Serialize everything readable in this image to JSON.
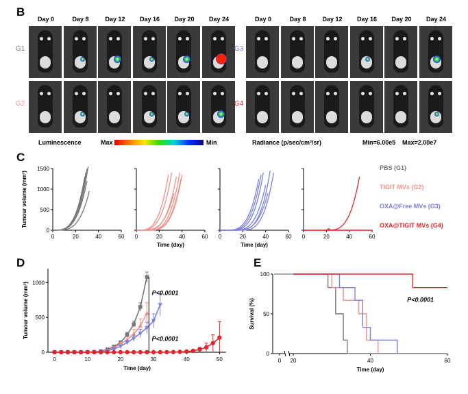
{
  "panelB": {
    "letter": "B",
    "days": [
      "Day 0",
      "Day 8",
      "Day 12",
      "Day 16",
      "Day 20",
      "Day 24"
    ],
    "groups_left": [
      "G1",
      "G2"
    ],
    "groups_right": [
      "G3",
      "G4"
    ],
    "luminescence_label": "Luminescence",
    "max_label": "Max",
    "min_label": "Min",
    "radiance_label": "Radiance (p/sec/cm²/sr)",
    "min_value": "Min=6.00e5",
    "max_value": "Max=2.00e7",
    "colors": {
      "G1": "#777777",
      "G2": "#f0908a",
      "G3": "#7b7fe0",
      "G4": "#e0262c"
    }
  },
  "panelC": {
    "letter": "C",
    "ylabel": "Tumour volume (mm³)",
    "xlabel": "Time (day)"
  },
  "panelD": {
    "letter": "D",
    "ylabel": "Tumour volume (mm³)",
    "xlabel": "Time (day)",
    "p1": "P<0.0001",
    "p2": "P<0.0001"
  },
  "panelE": {
    "letter": "E",
    "ylabel": "Survival (%)",
    "xlabel": "Time (day)",
    "p": "P<0.0001"
  },
  "chart_data": [
    {
      "type": "line",
      "panel": "C",
      "xlabel": "Time (day)",
      "ylabel": "Tumour volume (mm³)",
      "xlim": [
        0,
        60
      ],
      "ylim": [
        0,
        1500
      ],
      "xticks": [
        0,
        20,
        40,
        60
      ],
      "yticks": [
        0,
        500,
        1000,
        1500
      ],
      "legend": [
        "PBS (G1)",
        "TIGIT MVs (G2)",
        "OXA@Free MVs (G3)",
        "OXA@TIGIT MVs (G4)"
      ],
      "subplots": [
        {
          "name": "PBS (G1)",
          "color": "#777777",
          "curves": [
            {
              "end": 31,
              "peak": 1550
            },
            {
              "end": 30,
              "peak": 1500
            },
            {
              "end": 29,
              "peak": 1400
            },
            {
              "end": 28,
              "peak": 1300
            },
            {
              "end": 32,
              "peak": 950
            },
            {
              "end": 27,
              "peak": 1100
            },
            {
              "end": 30,
              "peak": 1200
            }
          ]
        },
        {
          "name": "TIGIT MVs (G2)",
          "color": "#f0908a",
          "curves": [
            {
              "end": 28,
              "peak": 1350
            },
            {
              "end": 31,
              "peak": 1400
            },
            {
              "end": 35,
              "peak": 1300
            },
            {
              "end": 38,
              "peak": 1400
            },
            {
              "end": 40,
              "peak": 1350
            },
            {
              "end": 39,
              "peak": 1250
            },
            {
              "end": 33,
              "peak": 900
            }
          ]
        },
        {
          "name": "OXA@Free MVs (G3)",
          "color": "#7b7fe0",
          "curves": [
            {
              "end": 34,
              "peak": 1250
            },
            {
              "end": 36,
              "peak": 1350
            },
            {
              "end": 38,
              "peak": 1400
            },
            {
              "end": 40,
              "peak": 1100
            },
            {
              "end": 44,
              "peak": 1450
            },
            {
              "end": 47,
              "peak": 1400
            },
            {
              "end": 42,
              "peak": 900
            }
          ]
        },
        {
          "name": "OXA@TIGIT MVs (G4)",
          "color": "#e0262c",
          "curves": [
            {
              "end": 49,
              "peak": 1300
            },
            {
              "end": 60,
              "peak": 0
            },
            {
              "end": 60,
              "peak": 0
            },
            {
              "end": 60,
              "peak": 0
            }
          ]
        }
      ]
    },
    {
      "type": "line",
      "panel": "D",
      "xlabel": "Time (day)",
      "ylabel": "Tumour volume (mm³)",
      "xlim": [
        -2,
        52
      ],
      "ylim": [
        0,
        1200
      ],
      "xticks": [
        0,
        10,
        20,
        30,
        40,
        50
      ],
      "yticks": [
        0,
        500,
        1000
      ],
      "series": [
        {
          "name": "PBS (G1)",
          "color": "#777777",
          "x": [
            0,
            2,
            4,
            6,
            8,
            10,
            12,
            14,
            16,
            18,
            20,
            22,
            24,
            26,
            28
          ],
          "values": [
            0,
            0,
            0,
            0,
            0,
            2,
            5,
            15,
            40,
            80,
            140,
            250,
            400,
            650,
            1080
          ],
          "err": [
            0,
            0,
            0,
            0,
            0,
            1,
            3,
            5,
            10,
            15,
            25,
            35,
            45,
            60,
            70
          ]
        },
        {
          "name": "TIGIT MVs (G2)",
          "color": "#f0908a",
          "x": [
            0,
            2,
            4,
            6,
            8,
            10,
            12,
            14,
            16,
            18,
            20,
            22,
            24,
            26,
            28
          ],
          "values": [
            0,
            0,
            0,
            0,
            0,
            2,
            4,
            10,
            30,
            60,
            120,
            180,
            260,
            380,
            560
          ],
          "err": [
            0,
            0,
            0,
            0,
            0,
            1,
            2,
            4,
            8,
            15,
            25,
            40,
            70,
            100,
            150
          ]
        },
        {
          "name": "OXA@Free MVs (G3)",
          "color": "#7b7fe0",
          "x": [
            0,
            2,
            4,
            6,
            8,
            10,
            12,
            14,
            16,
            18,
            20,
            22,
            24,
            26,
            28,
            30,
            32
          ],
          "values": [
            0,
            0,
            0,
            0,
            0,
            1,
            3,
            8,
            20,
            45,
            85,
            140,
            200,
            270,
            350,
            450,
            680
          ],
          "err": [
            0,
            0,
            0,
            0,
            0,
            1,
            2,
            3,
            6,
            10,
            18,
            30,
            45,
            60,
            80,
            100,
            160
          ]
        },
        {
          "name": "OXA@TIGIT MVs (G4)",
          "color": "#e0262c",
          "x": [
            0,
            2,
            4,
            6,
            8,
            10,
            12,
            14,
            16,
            18,
            20,
            22,
            24,
            26,
            28,
            30,
            32,
            34,
            36,
            38,
            40,
            42,
            44,
            46,
            48,
            50
          ],
          "values": [
            0,
            0,
            0,
            0,
            0,
            0,
            0,
            0,
            0,
            0,
            0,
            0,
            0,
            0,
            0,
            0,
            0,
            1,
            2,
            5,
            10,
            20,
            40,
            70,
            130,
            210
          ],
          "err": [
            0,
            0,
            0,
            0,
            0,
            0,
            0,
            0,
            0,
            0,
            0,
            0,
            0,
            0,
            0,
            0,
            0,
            1,
            2,
            4,
            8,
            15,
            30,
            60,
            120,
            230
          ]
        }
      ],
      "annotations": [
        "P<0.0001",
        "P<0.0001"
      ]
    },
    {
      "type": "line",
      "panel": "E",
      "xlabel": "Time (day)",
      "ylabel": "Survival (%)",
      "xlim": [
        0,
        60
      ],
      "ylim": [
        0,
        100
      ],
      "xticks": [
        0,
        20,
        40,
        60
      ],
      "yticks": [
        0,
        50,
        100
      ],
      "series": [
        {
          "name": "PBS (G1)",
          "color": "#777777",
          "x": [
            20,
            29,
            31,
            33,
            34,
            60
          ],
          "values": [
            100,
            83,
            50,
            17,
            0,
            0
          ]
        },
        {
          "name": "TIGIT MVs (G2)",
          "color": "#f0908a",
          "x": [
            20,
            30,
            33,
            37,
            39,
            42
          ],
          "values": [
            100,
            83,
            67,
            50,
            17,
            0
          ]
        },
        {
          "name": "OXA@Free MVs (G3)",
          "color": "#7b7fe0",
          "x": [
            20,
            32,
            36,
            38,
            40,
            47
          ],
          "values": [
            100,
            83,
            67,
            33,
            17,
            0
          ]
        },
        {
          "name": "OXA@TIGIT MVs (G4)",
          "color": "#e0262c",
          "x": [
            20,
            51,
            60
          ],
          "values": [
            100,
            83,
            83
          ]
        }
      ],
      "annotations": [
        "P<0.0001"
      ]
    }
  ]
}
